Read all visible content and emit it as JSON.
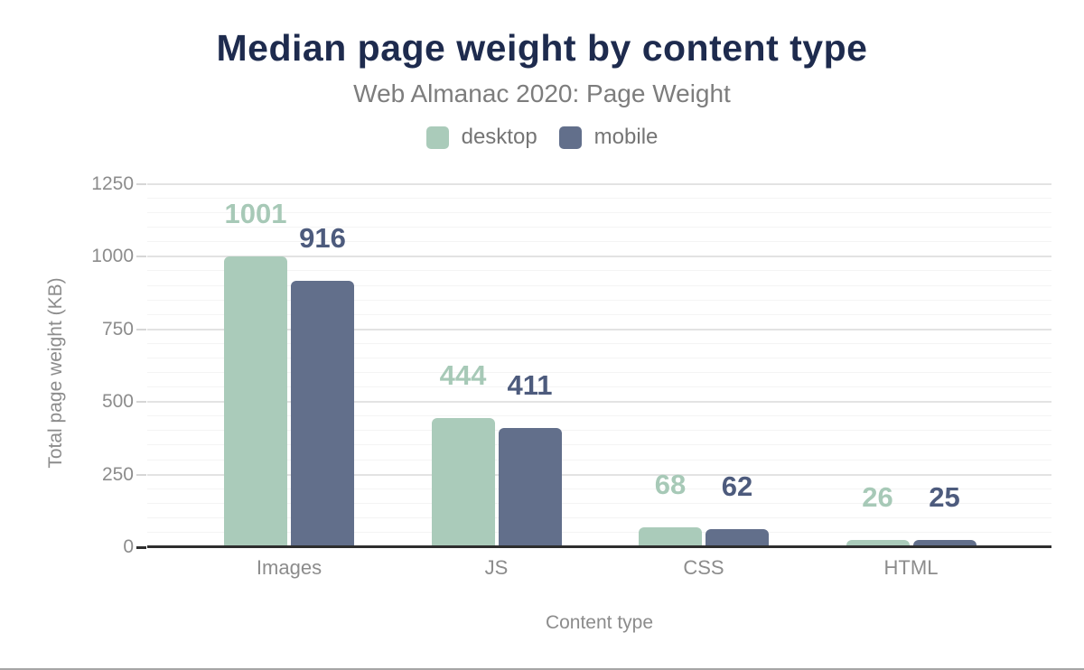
{
  "chart_data": {
    "type": "bar",
    "title": "Median page weight by content type",
    "subtitle": "Web Almanac 2020: Page Weight",
    "xlabel": "Content type",
    "ylabel": "Total page weight (KB)",
    "categories": [
      "Images",
      "JS",
      "CSS",
      "HTML"
    ],
    "series": [
      {
        "name": "desktop",
        "values": [
          1001,
          444,
          68,
          26
        ],
        "color": "#aacbba",
        "label_color": "#a7c9b7"
      },
      {
        "name": "mobile",
        "values": [
          916,
          411,
          62,
          25
        ],
        "color": "#626f8b",
        "label_color": "#4d5b7d"
      }
    ],
    "ylim": [
      0,
      1250
    ],
    "yticks": [
      0,
      250,
      500,
      750,
      1000,
      1250
    ],
    "minor_grid_step": 50,
    "grid": "on",
    "legend_position": "top-center",
    "bar_value_labels": "shown above bars"
  },
  "colors": {
    "title_text": "#1e2b4e",
    "subtitle_text": "#7d7d7d",
    "legend_text": "#757575",
    "axis_text": "#8c8c8c",
    "axis_line": "#2e2e2e",
    "grid_major": "#e3e3e3",
    "grid_minor": "#f4f4f4",
    "tick_mark": "#d6d6d6",
    "page_bottom_border": "#a6a6a6"
  }
}
